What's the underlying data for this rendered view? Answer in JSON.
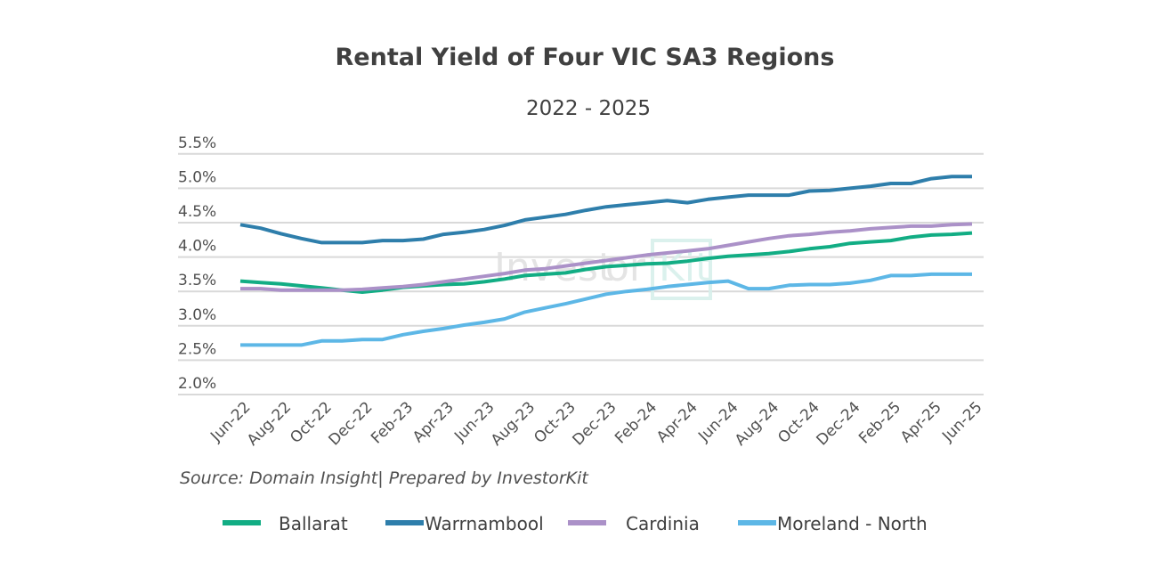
{
  "chart_data": {
    "type": "line",
    "title": "Rental Yield of Four VIC SA3 Regions",
    "subtitle": "2022 - 2025",
    "xlabel": "",
    "ylabel": "",
    "ylim": [
      2.0,
      5.5
    ],
    "yticks": [
      "2.0%",
      "2.5%",
      "3.0%",
      "3.5%",
      "4.0%",
      "4.5%",
      "5.0%",
      "5.5%"
    ],
    "ytick_values": [
      2.0,
      2.5,
      3.0,
      3.5,
      4.0,
      4.5,
      5.0,
      5.5
    ],
    "grid": true,
    "legend_position": "bottom",
    "categories": [
      "Jun-22",
      "Jul-22",
      "Aug-22",
      "Sep-22",
      "Oct-22",
      "Nov-22",
      "Dec-22",
      "Jan-23",
      "Feb-23",
      "Mar-23",
      "Apr-23",
      "May-23",
      "Jun-23",
      "Jul-23",
      "Aug-23",
      "Sep-23",
      "Oct-23",
      "Nov-23",
      "Dec-23",
      "Jan-24",
      "Feb-24",
      "Mar-24",
      "Apr-24",
      "May-24",
      "Jun-24",
      "Jul-24",
      "Aug-24",
      "Sep-24",
      "Oct-24",
      "Nov-24",
      "Dec-24",
      "Jan-25",
      "Feb-25",
      "Mar-25",
      "Apr-25",
      "May-25",
      "Jun-25"
    ],
    "xtick_labels": [
      "Jun-22",
      "Aug-22",
      "Oct-22",
      "Dec-22",
      "Feb-23",
      "Apr-23",
      "Jun-23",
      "Aug-23",
      "Oct-23",
      "Dec-23",
      "Feb-24",
      "Apr-24",
      "Jun-24",
      "Aug-24",
      "Oct-24",
      "Dec-24",
      "Feb-25",
      "Apr-25",
      "Jun-25"
    ],
    "series": [
      {
        "name": "Ballarat",
        "color": "#12ad84",
        "values": [
          3.65,
          3.63,
          3.61,
          3.58,
          3.55,
          3.52,
          3.49,
          3.52,
          3.56,
          3.58,
          3.6,
          3.61,
          3.64,
          3.68,
          3.73,
          3.75,
          3.77,
          3.82,
          3.86,
          3.88,
          3.9,
          3.91,
          3.94,
          3.98,
          4.01,
          4.03,
          4.05,
          4.08,
          4.12,
          4.15,
          4.2,
          4.22,
          4.24,
          4.29,
          4.32,
          4.33,
          4.35
        ]
      },
      {
        "name": "Warrnambool",
        "color": "#2e7eab",
        "values": [
          4.47,
          4.42,
          4.34,
          4.27,
          4.21,
          4.21,
          4.21,
          4.24,
          4.24,
          4.26,
          4.33,
          4.36,
          4.4,
          4.46,
          4.54,
          4.58,
          4.62,
          4.68,
          4.73,
          4.76,
          4.79,
          4.82,
          4.79,
          4.84,
          4.87,
          4.9,
          4.9,
          4.9,
          4.96,
          4.97,
          5.0,
          5.03,
          5.07,
          5.07,
          5.14,
          5.17,
          5.17
        ]
      },
      {
        "name": "Cardinia",
        "color": "#ab91c8",
        "values": [
          3.54,
          3.54,
          3.52,
          3.52,
          3.52,
          3.52,
          3.53,
          3.55,
          3.57,
          3.6,
          3.64,
          3.68,
          3.72,
          3.76,
          3.81,
          3.83,
          3.87,
          3.91,
          3.95,
          3.99,
          4.03,
          4.06,
          4.09,
          4.12,
          4.17,
          4.22,
          4.27,
          4.31,
          4.33,
          4.36,
          4.38,
          4.41,
          4.43,
          4.45,
          4.45,
          4.47,
          4.48
        ]
      },
      {
        "name": "Moreland - North",
        "color": "#5db7e6",
        "values": [
          2.72,
          2.72,
          2.72,
          2.72,
          2.78,
          2.78,
          2.8,
          2.8,
          2.87,
          2.92,
          2.96,
          3.01,
          3.05,
          3.1,
          3.2,
          3.26,
          3.32,
          3.39,
          3.46,
          3.5,
          3.53,
          3.57,
          3.6,
          3.63,
          3.65,
          3.54,
          3.54,
          3.59,
          3.6,
          3.6,
          3.62,
          3.66,
          3.73,
          3.73,
          3.75,
          3.75,
          3.75
        ]
      }
    ],
    "source": "Source:  Domain Insight| Prepared by InvestorKit",
    "watermark": "InvestorKit"
  }
}
